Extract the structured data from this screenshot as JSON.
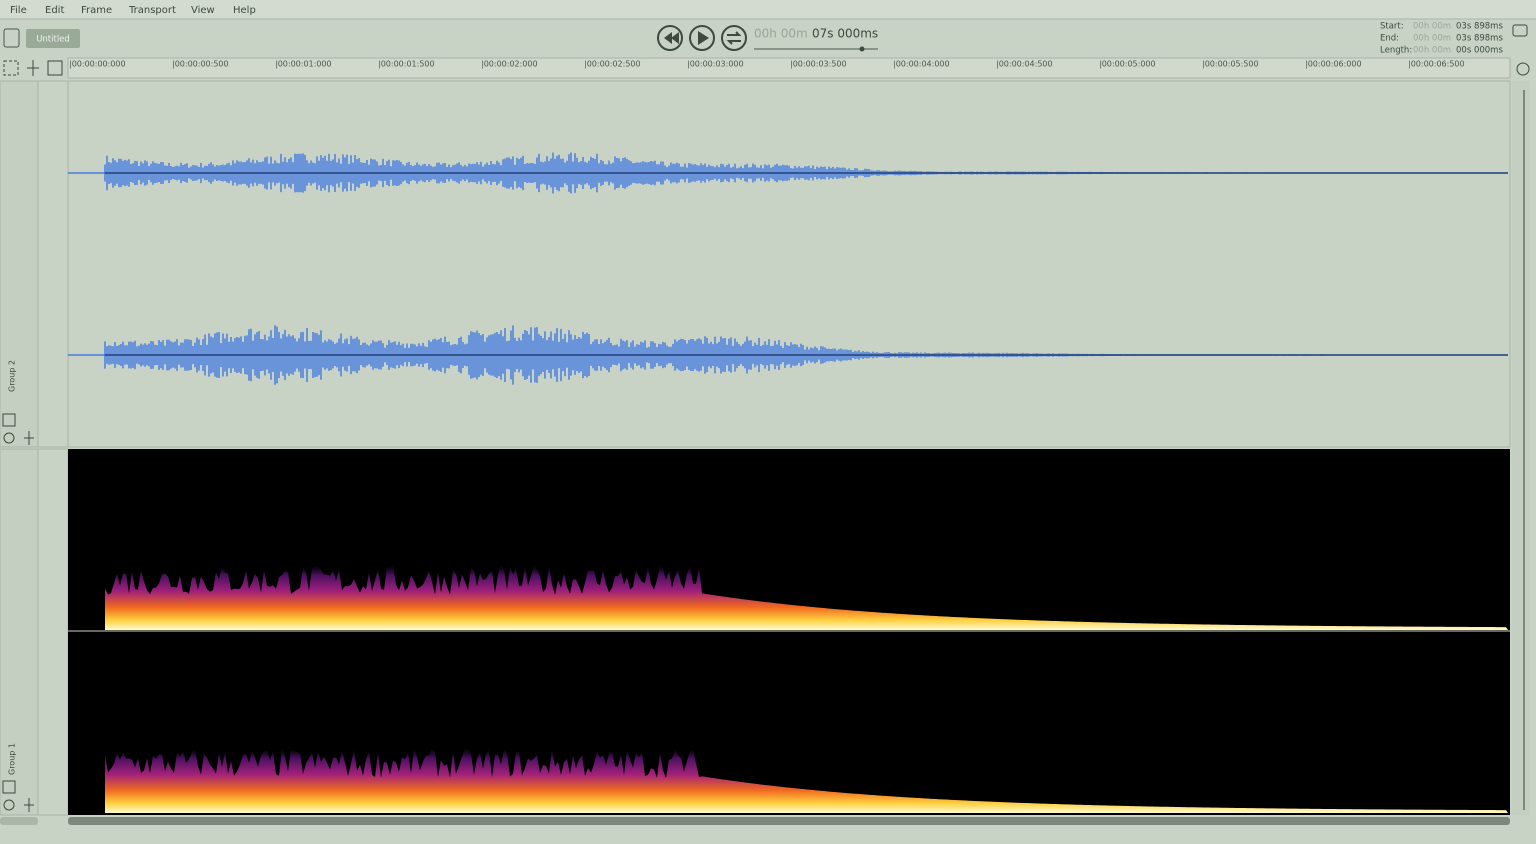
{
  "menu": [
    "File",
    "Edit",
    "Frame",
    "Transport",
    "View",
    "Help"
  ],
  "document": {
    "name": "Untitled"
  },
  "transport": {
    "time_hm": "00h 00m",
    "time_sms": "07s 000ms"
  },
  "selection": {
    "start_label": "Start:",
    "start_hm": "00h 00m",
    "start_sms": "03s 898ms",
    "end_label": "End:",
    "end_hm": "00h 00m",
    "end_sms": "03s 898ms",
    "length_label": "Length:",
    "length_hm": "00h 00m",
    "length_sms": "00s 000ms"
  },
  "ruler": [
    "|00:00:00:000",
    "|00:00:00:500",
    "|00:00:01:000",
    "|00:00:01:500",
    "|00:00:02:000",
    "|00:00:02:500",
    "|00:00:03:000",
    "|00:00:03:500",
    "|00:00:04:000",
    "|00:00:04:500",
    "|00:00:05:000",
    "|00:00:05:500",
    "|00:00:06:000",
    "|00:00:06:500"
  ],
  "groups": [
    {
      "name": "Group 2"
    },
    {
      "name": "Group 1"
    }
  ]
}
